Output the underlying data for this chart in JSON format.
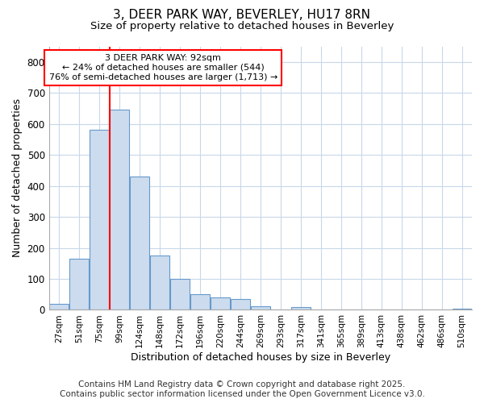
{
  "title": "3, DEER PARK WAY, BEVERLEY, HU17 8RN",
  "subtitle": "Size of property relative to detached houses in Beverley",
  "xlabel": "Distribution of detached houses by size in Beverley",
  "ylabel": "Number of detached properties",
  "bar_labels": [
    "27sqm",
    "51sqm",
    "75sqm",
    "99sqm",
    "124sqm",
    "148sqm",
    "172sqm",
    "196sqm",
    "220sqm",
    "244sqm",
    "269sqm",
    "293sqm",
    "317sqm",
    "341sqm",
    "365sqm",
    "389sqm",
    "413sqm",
    "438sqm",
    "462sqm",
    "486sqm",
    "510sqm"
  ],
  "bar_values": [
    20,
    165,
    580,
    645,
    430,
    175,
    100,
    50,
    40,
    35,
    12,
    0,
    10,
    0,
    0,
    0,
    0,
    0,
    0,
    0,
    5
  ],
  "bar_color": "#ccdcee",
  "bar_edgecolor": "#6699cc",
  "property_line_color": "red",
  "annotation_title": "3 DEER PARK WAY: 92sqm",
  "annotation_line1": "← 24% of detached houses are smaller (544)",
  "annotation_line2": "76% of semi-detached houses are larger (1,713) →",
  "annotation_box_color": "white",
  "annotation_box_edgecolor": "red",
  "ylim": [
    0,
    850
  ],
  "yticks": [
    0,
    100,
    200,
    300,
    400,
    500,
    600,
    700,
    800
  ],
  "background_color": "#ffffff",
  "plot_background": "#ffffff",
  "grid_color": "#c8d8ea",
  "footnote1": "Contains HM Land Registry data © Crown copyright and database right 2025.",
  "footnote2": "Contains public sector information licensed under the Open Government Licence v3.0.",
  "title_fontsize": 11,
  "subtitle_fontsize": 9.5,
  "footnote_fontsize": 7.5
}
